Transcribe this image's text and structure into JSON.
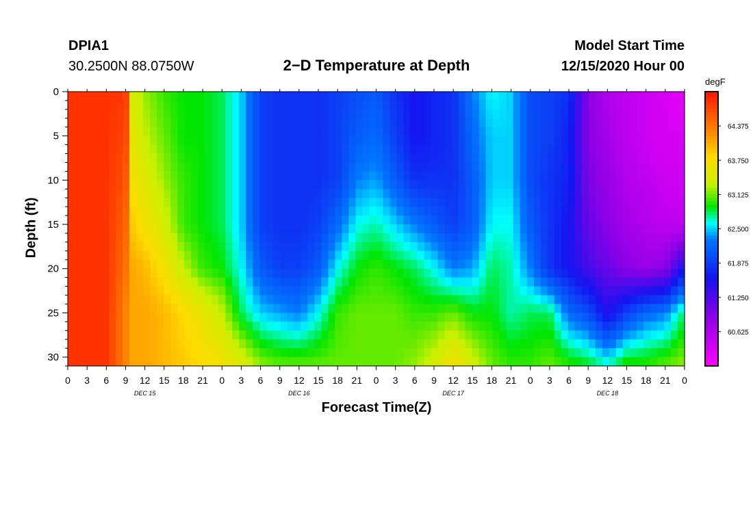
{
  "header": {
    "station": "DPIA1",
    "coordinates": "30.2500N 88.0750W",
    "title": "2−D Temperature at Depth",
    "start_label": "Model Start Time",
    "start_value": "12/15/2020 Hour 00"
  },
  "chart_data": {
    "type": "heatmap",
    "title": "2−D Temperature at Depth",
    "xlabel": "Forecast Time(Z)",
    "ylabel": "Depth (ft)",
    "x_hours": [
      0,
      3,
      6,
      9,
      10,
      12,
      15,
      18,
      21,
      24,
      27,
      30,
      33,
      36,
      39,
      42,
      45,
      48,
      51,
      54,
      57,
      60,
      63,
      66,
      69,
      72,
      75,
      78,
      81,
      84,
      87,
      90,
      93,
      96
    ],
    "x_tick_labels": [
      "0",
      "3",
      "6",
      "9",
      "12",
      "15",
      "18",
      "21",
      "0",
      "3",
      "6",
      "9",
      "12",
      "15",
      "18",
      "21",
      "0",
      "3",
      "6",
      "9",
      "12",
      "15",
      "18",
      "21",
      "0",
      "3",
      "6",
      "9",
      "12",
      "15",
      "18",
      "21",
      "0"
    ],
    "date_labels": [
      "DEC 15",
      "DEC 16",
      "DEC 17",
      "DEC 18"
    ],
    "depth_ft": [
      0,
      5,
      10,
      15,
      20,
      25,
      31
    ],
    "y_tick_labels": [
      "0",
      "5",
      "10",
      "15",
      "20",
      "25",
      "30"
    ],
    "y_range": [
      0,
      31
    ],
    "x_range": [
      0,
      96
    ],
    "values_degF": [
      [
        64.8,
        64.8,
        64.8,
        64.8,
        63.4,
        63.2,
        63.0,
        62.9,
        62.9,
        62.8,
        62.5,
        61.9,
        61.8,
        61.8,
        61.8,
        61.9,
        62.0,
        62.1,
        61.8,
        61.6,
        61.7,
        61.8,
        62.3,
        62.6,
        62.5,
        62.0,
        61.9,
        61.8,
        60.9,
        60.6,
        60.5,
        60.4,
        60.3,
        60.2
      ],
      [
        64.8,
        64.8,
        64.8,
        64.7,
        63.6,
        63.3,
        63.1,
        62.9,
        62.9,
        62.8,
        62.5,
        61.9,
        61.8,
        61.8,
        61.8,
        61.9,
        62.1,
        62.2,
        61.9,
        61.6,
        61.7,
        61.8,
        62.2,
        62.5,
        62.5,
        62.0,
        61.9,
        61.7,
        60.9,
        60.7,
        60.5,
        60.4,
        60.3,
        60.3
      ],
      [
        64.8,
        64.8,
        64.8,
        64.6,
        63.7,
        63.5,
        63.2,
        63.0,
        62.9,
        62.8,
        62.5,
        61.9,
        61.8,
        61.8,
        61.8,
        61.9,
        62.3,
        62.4,
        62.1,
        61.8,
        61.8,
        61.8,
        62.1,
        62.5,
        62.5,
        62.0,
        61.8,
        61.7,
        61.0,
        60.8,
        60.6,
        60.5,
        60.4,
        60.4
      ],
      [
        64.8,
        64.8,
        64.8,
        64.5,
        63.9,
        63.7,
        63.4,
        63.0,
        62.9,
        62.8,
        62.5,
        61.9,
        61.8,
        61.8,
        61.9,
        62.2,
        62.6,
        62.7,
        62.5,
        62.3,
        62.1,
        61.9,
        62.1,
        62.6,
        62.6,
        62.1,
        61.8,
        61.6,
        61.1,
        60.9,
        60.7,
        60.6,
        60.5,
        60.5
      ],
      [
        64.8,
        64.8,
        64.8,
        64.4,
        64.1,
        64.0,
        63.7,
        63.3,
        63.0,
        62.9,
        62.6,
        62.1,
        61.9,
        61.9,
        62.1,
        62.6,
        62.9,
        63.0,
        62.9,
        62.8,
        62.6,
        62.3,
        62.4,
        62.8,
        62.7,
        62.3,
        61.8,
        61.6,
        61.3,
        61.1,
        60.9,
        60.8,
        60.9,
        61.6
      ],
      [
        64.8,
        64.8,
        64.8,
        64.3,
        64.1,
        64.1,
        64.0,
        63.8,
        63.6,
        63.3,
        62.8,
        62.5,
        62.4,
        62.3,
        62.6,
        63.0,
        63.1,
        63.1,
        63.1,
        63.0,
        63.0,
        63.1,
        62.9,
        62.9,
        62.7,
        62.8,
        62.8,
        62.2,
        62.0,
        61.5,
        61.9,
        62.2,
        62.3,
        62.8
      ],
      [
        64.8,
        64.8,
        64.8,
        64.3,
        64.1,
        64.1,
        64.0,
        63.9,
        63.8,
        63.7,
        63.5,
        63.2,
        63.1,
        63.1,
        63.1,
        63.1,
        63.1,
        63.1,
        63.1,
        63.2,
        63.4,
        63.7,
        63.4,
        63.1,
        63.0,
        63.0,
        63.1,
        63.0,
        62.9,
        62.7,
        63.0,
        63.0,
        63.1,
        63.2
      ]
    ],
    "colorbar": {
      "unit": "degF",
      "range": [
        60.0,
        65.0
      ],
      "tick_labels": [
        "64.375",
        "63.750",
        "63.125",
        "62.500",
        "61.875",
        "61.250",
        "60.625"
      ],
      "tick_values": [
        64.375,
        63.75,
        63.125,
        62.5,
        61.875,
        61.25,
        60.625
      ]
    }
  }
}
